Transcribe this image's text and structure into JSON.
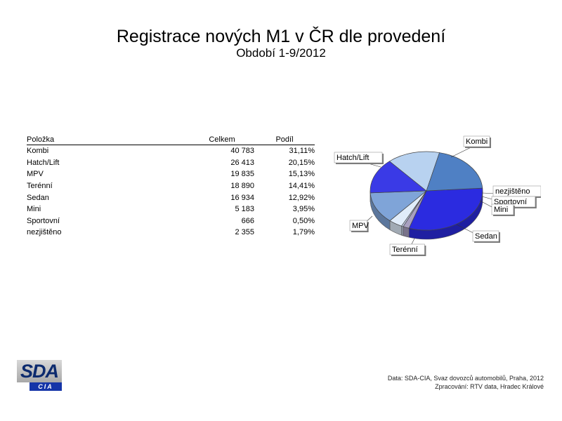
{
  "title": "Registrace nových M1 v ČR dle provedení",
  "subtitle": "Období 1-9/2012",
  "table": {
    "headers": [
      "Položka",
      "Celkem",
      "Podíl"
    ],
    "rows": [
      [
        "Kombi",
        "40 783",
        "31,11%"
      ],
      [
        "Hatch/Lift",
        "26 413",
        "20,15%"
      ],
      [
        "MPV",
        "19 835",
        "15,13%"
      ],
      [
        "Terénní",
        "18 890",
        "14,41%"
      ],
      [
        "Sedan",
        "16 934",
        "12,92%"
      ],
      [
        "Mini",
        "5 183",
        "3,95%"
      ],
      [
        "Sportovní",
        "666",
        "0,50%"
      ],
      [
        "nezjištěno",
        "2 355",
        "1,79%"
      ]
    ]
  },
  "chart_data": {
    "type": "pie",
    "title": "Registrace nových M1 v ČR dle provedení",
    "subtitle": "Období 1-9/2012",
    "slices": [
      {
        "label": "Kombi",
        "value": 40783,
        "share": 31.11,
        "color": "#2b2be0"
      },
      {
        "label": "nezjištěno",
        "value": 2355,
        "share": 1.79,
        "color": "#a8a0c0"
      },
      {
        "label": "Sportovní",
        "value": 666,
        "share": 0.5,
        "color": "#c8d4f0"
      },
      {
        "label": "Mini",
        "value": 5183,
        "share": 3.95,
        "color": "#e0ecfa"
      },
      {
        "label": "Sedan",
        "value": 16934,
        "share": 12.92,
        "color": "#7fa4d8"
      },
      {
        "label": "Terénní",
        "value": 18890,
        "share": 14.41,
        "color": "#3a3ae6"
      },
      {
        "label": "MPV",
        "value": 19835,
        "share": 15.13,
        "color": "#b8d2f0"
      },
      {
        "label": "Hatch/Lift",
        "value": 26413,
        "share": 20.15,
        "color": "#4f80c4"
      }
    ]
  },
  "logo": {
    "top": "SDA",
    "bottom": "CIA"
  },
  "source": {
    "line1": "Data: SDA-CIA, Svaz dovozců automobilů, Praha, 2012",
    "line2": "Zpracování: RTV data, Hradec Králové"
  }
}
